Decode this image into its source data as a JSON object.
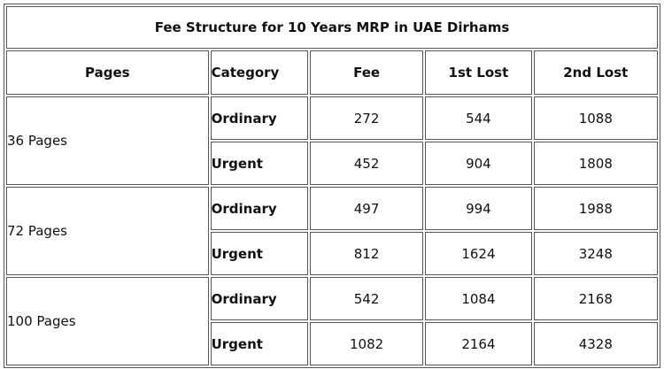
{
  "table": {
    "title": "Fee Structure for 10 Years MRP in UAE Dirhams",
    "headers": [
      "Pages",
      "Category",
      "Fee",
      "1st Lost",
      "2nd Lost"
    ],
    "groups": [
      {
        "pages": "36 Pages",
        "rows": [
          {
            "category": "Ordinary",
            "fee": "272",
            "first_lost": "544",
            "second_lost": "1088"
          },
          {
            "category": "Urgent",
            "fee": "452",
            "first_lost": "904",
            "second_lost": "1808"
          }
        ]
      },
      {
        "pages": "72 Pages",
        "rows": [
          {
            "category": "Ordinary",
            "fee": "497",
            "first_lost": "994",
            "second_lost": "1988"
          },
          {
            "category": "Urgent",
            "fee": "812",
            "first_lost": "1624",
            "second_lost": "3248"
          }
        ]
      },
      {
        "pages": "100 Pages",
        "rows": [
          {
            "category": "Ordinary",
            "fee": "542",
            "first_lost": "1084",
            "second_lost": "2168"
          },
          {
            "category": "Urgent",
            "fee": "1082",
            "first_lost": "2164",
            "second_lost": "4328"
          }
        ]
      }
    ]
  }
}
